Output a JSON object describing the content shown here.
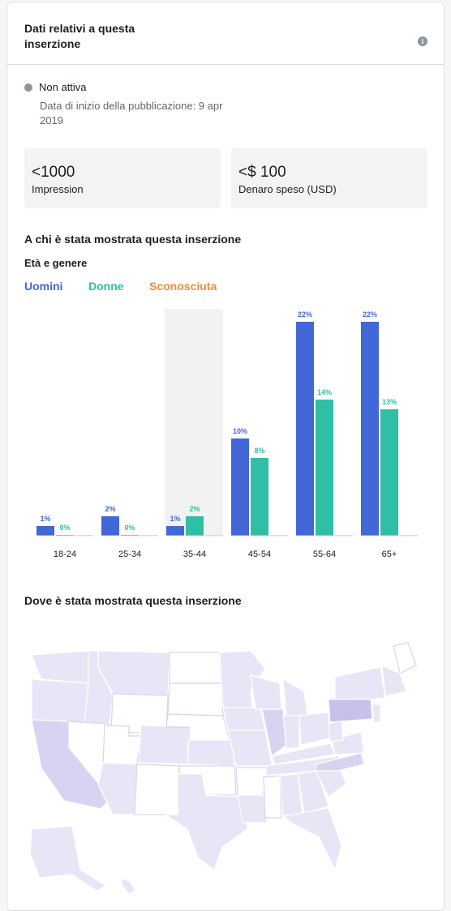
{
  "header": {
    "title": "Dati relativi a questa inserzione",
    "info_icon": "info-icon"
  },
  "status": {
    "label": "Non attiva",
    "start_date": "Data di inizio della pubblicazione: 9 apr 2019"
  },
  "stats": [
    {
      "value": "<1000",
      "label": "Impression"
    },
    {
      "value": "<$ 100",
      "label": "Denaro speso (USD)"
    }
  ],
  "audience": {
    "title": "A chi è stata mostrata questa inserzione",
    "subtitle": "Età e genere",
    "legend": [
      {
        "name": "Uomini",
        "color": "#4267d6"
      },
      {
        "name": "Donne",
        "color": "#2fbfa4"
      },
      {
        "name": "Sconosciuta",
        "color": "#f58a3a"
      }
    ]
  },
  "chart_data": {
    "type": "bar",
    "categories": [
      "18-24",
      "25-34",
      "35-44",
      "45-54",
      "55-64",
      "65+"
    ],
    "highlighted_category": "35-44",
    "series": [
      {
        "name": "Uomini",
        "values": [
          1,
          2,
          1,
          10,
          22,
          22
        ],
        "labels": [
          "1%",
          "2%",
          "1%",
          "10%",
          "22%",
          "22%"
        ],
        "color": "#4267d6"
      },
      {
        "name": "Donne",
        "values": [
          0,
          0,
          2,
          8,
          14,
          13
        ],
        "labels": [
          "0%",
          "0%",
          "2%",
          "8%",
          "14%",
          "13%"
        ],
        "color": "#2fbfa4"
      },
      {
        "name": "Sconosciuta",
        "values": [
          0,
          0,
          0,
          0,
          0,
          0
        ],
        "labels": [
          "",
          "",
          "",
          "",
          "",
          ""
        ],
        "color": "#f58a3a"
      }
    ],
    "ylim": [
      0,
      22
    ]
  },
  "location": {
    "title": "Dove è stata mostrata questa inserzione"
  },
  "map": {
    "type": "US choropleth",
    "fill_light": "#e8e5f7",
    "fill_mid": "#d9d3f1",
    "fill_dark": "#c9bfeb",
    "stroke": "#ffffff"
  }
}
